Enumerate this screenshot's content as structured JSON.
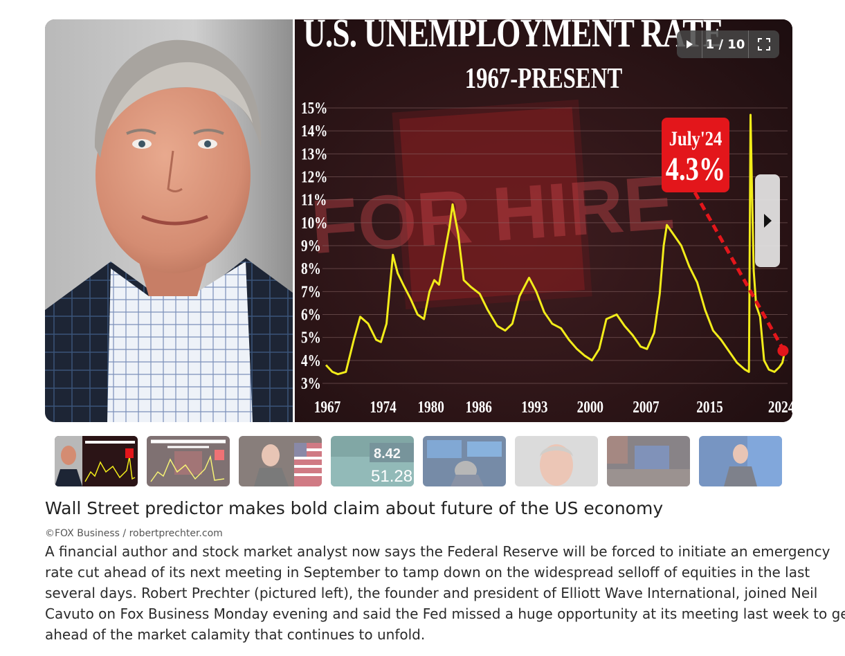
{
  "slideshow": {
    "counter": "1 / 10",
    "chart": {
      "title": "U.S. UNEMPLOYMENT RATE",
      "subtitle": "1967-PRESENT",
      "callout_date": "July'24",
      "callout_value": "4.3%",
      "background_sign": "FOR HIRE"
    }
  },
  "article": {
    "headline": "Wall Street predictor makes bold claim about future of the US economy",
    "credit": "©FOX Business / robertprechter.com",
    "body": "A financial author and stock market analyst now says the Federal Reserve will be forced to initiate an emergency rate cut ahead of its next meeting in September to tamp down on the widespread selloff of equities in the last several days. Robert Prechter (pictured left), the founder and president of Elliott Wave International, joined Neil Cavuto on Fox Business Monday evening and said the Fed missed a huge opportunity at its meeting last week to get ahead of the market calamity that continues to unfold."
  },
  "thumbnails": [
    {
      "name": "thumb-1"
    },
    {
      "name": "thumb-2"
    },
    {
      "name": "thumb-3"
    },
    {
      "name": "thumb-4"
    },
    {
      "name": "thumb-5"
    },
    {
      "name": "thumb-6"
    },
    {
      "name": "thumb-7"
    },
    {
      "name": "thumb-8"
    }
  ],
  "thumb_texts": {
    "t4a": "8.42",
    "t4b": "51.28"
  },
  "icons": {
    "play": "play-icon",
    "fullscreen": "fullscreen-icon",
    "next": "chevron-right-icon"
  },
  "colors": {
    "line": "#f2ec1a",
    "callout": "#e3161b",
    "chart_bg": "#2b1416"
  },
  "chart_data": {
    "type": "line",
    "title": "U.S. UNEMPLOYMENT RATE",
    "subtitle": "1967-PRESENT",
    "xlabel": "",
    "ylabel": "",
    "x_ticks": [
      "1967",
      "1974",
      "1980",
      "1986",
      "1993",
      "2000",
      "2007",
      "2015",
      "2024"
    ],
    "y_ticks": [
      "3%",
      "4%",
      "5%",
      "6%",
      "7%",
      "8%",
      "9%",
      "10%",
      "11%",
      "12%",
      "13%",
      "14%",
      "15%"
    ],
    "xlim": [
      1967,
      2024.6
    ],
    "ylim": [
      2.5,
      15
    ],
    "grid": true,
    "series": [
      {
        "x": [
          1967,
          1967.8,
          1968.5,
          1969.5,
          1970.5,
          1971.3,
          1972.3,
          1973.3,
          1973.9,
          1974.6,
          1975.4,
          1976,
          1976.7,
          1977.6,
          1978.5,
          1979.3,
          1980,
          1980.6,
          1981.2,
          1981.8,
          1982.5,
          1982.9,
          1983.6,
          1984.3,
          1985.2,
          1986.3,
          1987.3,
          1988.5,
          1989.5,
          1990.4,
          1991.3,
          1992.5,
          1993.4,
          1994.4,
          1995.4,
          1996.5,
          1997.5,
          1998.5,
          1999.5,
          2000.4,
          2001.3,
          2002.2,
          2003.5,
          2004.5,
          2005.5,
          2006.5,
          2007.3,
          2008.2,
          2008.9,
          2009.4,
          2009.8,
          2010.6,
          2011.6,
          2012.6,
          2013.6,
          2014.6,
          2015.6,
          2016.6,
          2017.6,
          2018.6,
          2019.6,
          2020.1,
          2020.3,
          2020.5,
          2020.7,
          2021,
          2021.5,
          2022,
          2022.6,
          2023.3,
          2023.9,
          2024.3,
          2024.55
        ],
        "y": [
          3.8,
          3.5,
          3.4,
          3.5,
          4.9,
          5.9,
          5.6,
          4.9,
          4.8,
          5.6,
          8.6,
          7.8,
          7.3,
          6.7,
          6.0,
          5.8,
          7.0,
          7.5,
          7.3,
          8.5,
          9.8,
          10.8,
          9.5,
          7.5,
          7.2,
          6.9,
          6.2,
          5.5,
          5.3,
          5.6,
          6.8,
          7.6,
          7.0,
          6.1,
          5.6,
          5.4,
          4.9,
          4.5,
          4.2,
          4.0,
          4.5,
          5.8,
          6.0,
          5.5,
          5.1,
          4.6,
          4.5,
          5.2,
          6.9,
          9.0,
          9.9,
          9.5,
          9.0,
          8.1,
          7.4,
          6.2,
          5.3,
          4.9,
          4.4,
          3.9,
          3.6,
          3.5,
          14.7,
          11.1,
          7.9,
          6.4,
          5.9,
          4.0,
          3.6,
          3.5,
          3.7,
          3.9,
          4.3
        ]
      }
    ],
    "annotation": {
      "label_date": "July'24",
      "label_value": "4.3%",
      "x": 2024.55,
      "y": 4.3
    }
  }
}
